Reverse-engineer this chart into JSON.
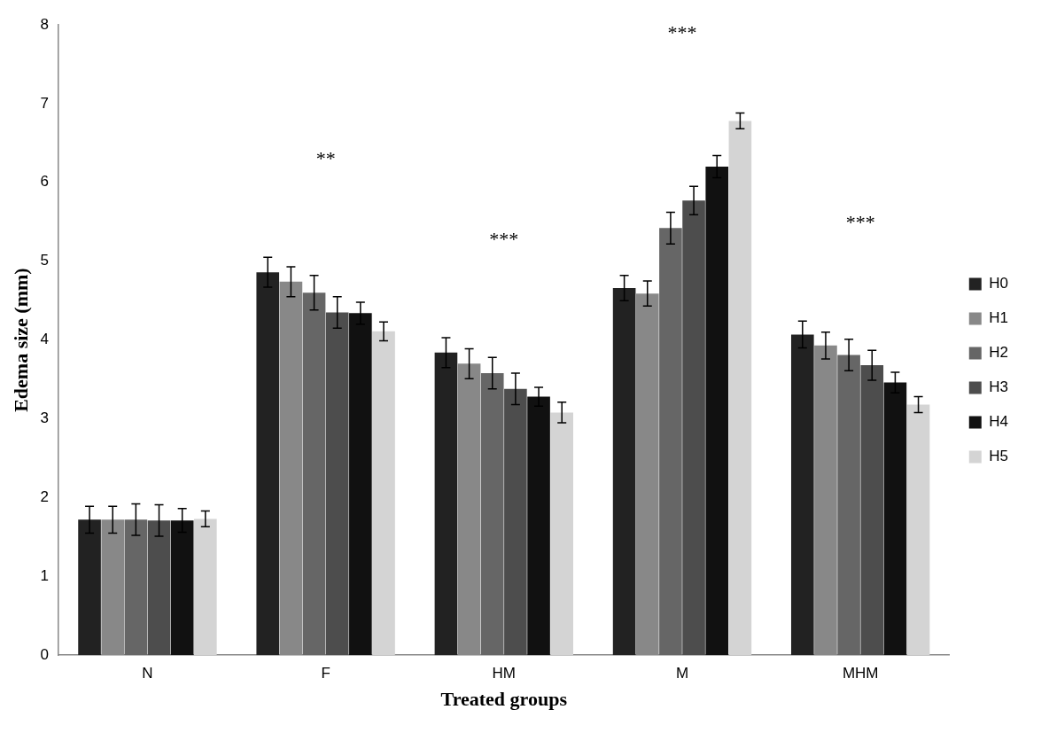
{
  "chart_data": {
    "type": "bar",
    "xlabel": "Treated groups",
    "ylabel": "Edema size (mm)",
    "categories": [
      "N",
      "F",
      "HM",
      "M",
      "MHM"
    ],
    "series": [
      {
        "name": "H0",
        "color": "#222222",
        "values": [
          1.72,
          4.86,
          3.84,
          4.66,
          4.07
        ],
        "errors": [
          0.17,
          0.19,
          0.19,
          0.16,
          0.17
        ]
      },
      {
        "name": "H1",
        "color": "#888888",
        "values": [
          1.72,
          4.74,
          3.7,
          4.59,
          3.93
        ],
        "errors": [
          0.17,
          0.19,
          0.19,
          0.16,
          0.17
        ]
      },
      {
        "name": "H2",
        "color": "#666666",
        "values": [
          1.72,
          4.6,
          3.58,
          5.42,
          3.81
        ],
        "errors": [
          0.2,
          0.22,
          0.2,
          0.2,
          0.2
        ]
      },
      {
        "name": "H3",
        "color": "#4d4d4d",
        "values": [
          1.71,
          4.35,
          3.38,
          5.77,
          3.68
        ],
        "errors": [
          0.2,
          0.2,
          0.2,
          0.18,
          0.19
        ]
      },
      {
        "name": "H4",
        "color": "#111111",
        "values": [
          1.71,
          4.34,
          3.28,
          6.2,
          3.46
        ],
        "errors": [
          0.15,
          0.14,
          0.12,
          0.14,
          0.13
        ]
      },
      {
        "name": "H5",
        "color": "#d4d4d4",
        "values": [
          1.73,
          4.11,
          3.08,
          6.78,
          3.18
        ],
        "errors": [
          0.1,
          0.12,
          0.13,
          0.1,
          0.1
        ]
      }
    ],
    "ylim": [
      0,
      8
    ],
    "yticks": [
      0,
      1,
      2,
      3,
      4,
      5,
      6,
      7,
      8
    ],
    "grid": false,
    "legend": "right",
    "annotations": [
      "**",
      "***",
      "***",
      "***"
    ]
  }
}
